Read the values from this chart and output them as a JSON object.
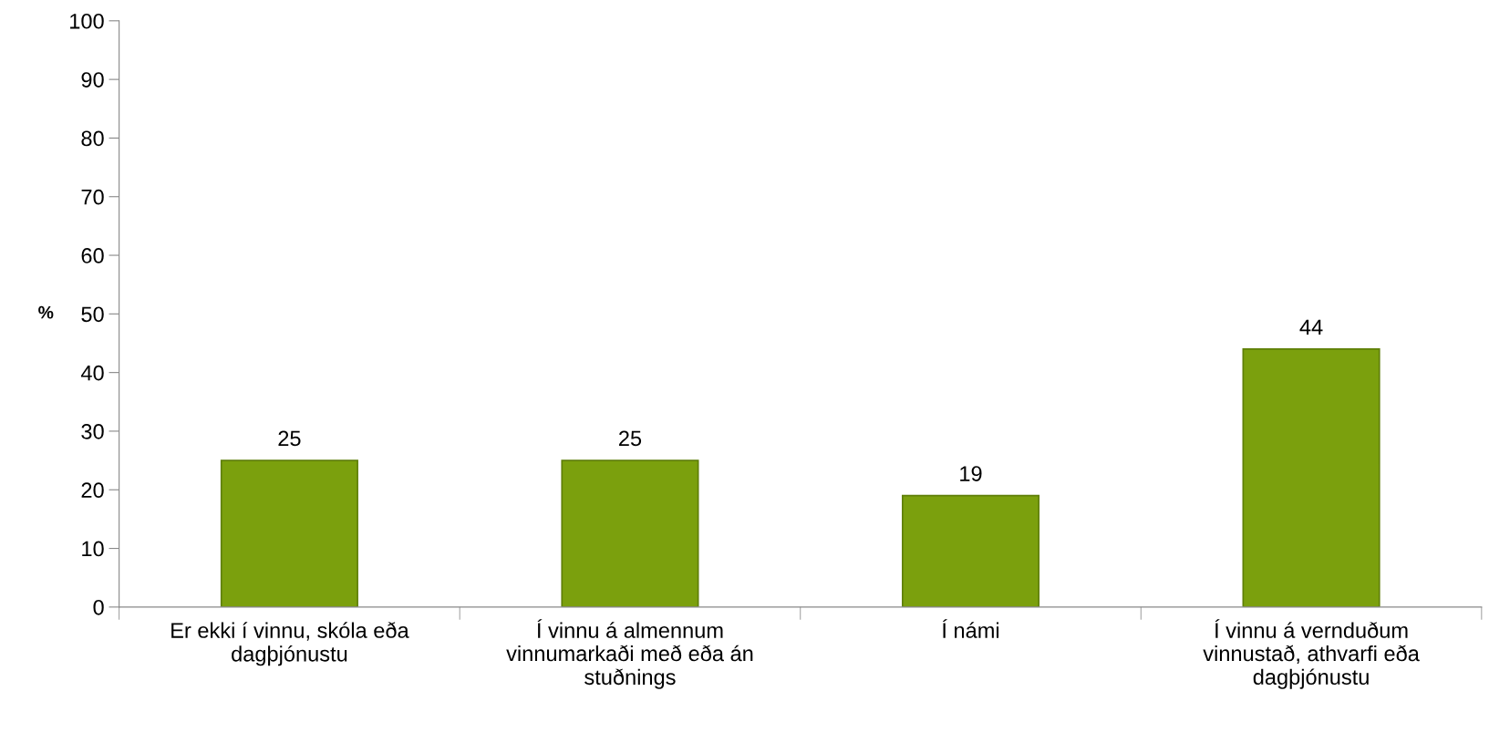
{
  "chart_data": {
    "type": "bar",
    "ylabel": "%",
    "categories": [
      "Er ekki í vinnu, skóla eða\ndagþjónustu",
      "Í vinnu á almennum\nvinnumarkaði með eða án\nstuðnings",
      "Í námi",
      "Í vinnu á vernduðum\nvinnustað, athvarfi eða\ndagþjónustu"
    ],
    "values": [
      25,
      25,
      19,
      44
    ],
    "color": "#7ba00d",
    "ylim": [
      0,
      100
    ],
    "yticks": [
      0,
      10,
      20,
      30,
      40,
      50,
      60,
      70,
      80,
      90,
      100
    ],
    "data_labels": true,
    "grid": false,
    "legend": false
  }
}
